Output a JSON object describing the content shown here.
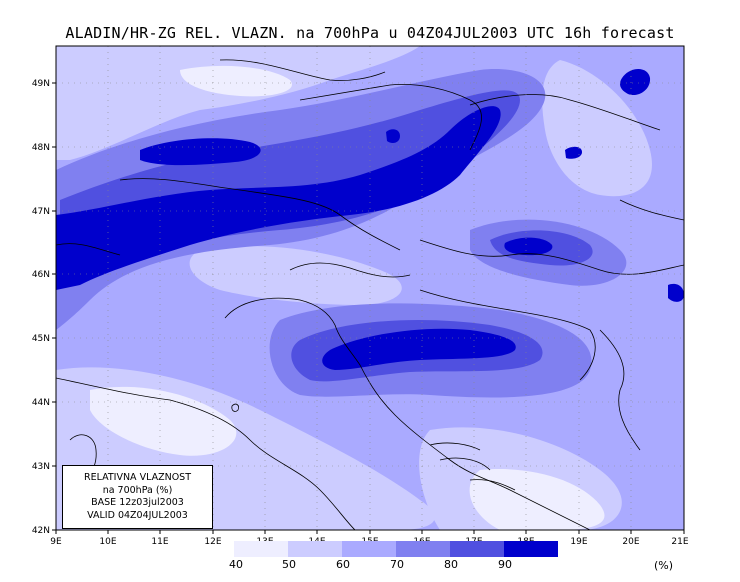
{
  "title": "ALADIN/HR-ZG REL. VLAZN. na 700hPa u 04Z04JUL2003 UTC 16h forecast",
  "axes": {
    "x_labels": [
      "9E",
      "10E",
      "11E",
      "12E",
      "13E",
      "14E",
      "15E",
      "16E",
      "17E",
      "18E",
      "19E",
      "20E",
      "21E"
    ],
    "y_labels": [
      "49N",
      "48N",
      "47N",
      "46N",
      "45N",
      "44N",
      "43N",
      "42N"
    ]
  },
  "info_box": {
    "line1": "RELATIVNA VLAZNOST",
    "line2": "na 700hPa (%)",
    "line3": "BASE 12z03jul2003",
    "line4": "VALID 04Z04JUL2003"
  },
  "legend": {
    "colors": [
      "#eeeeff",
      "#ccccff",
      "#aaaaff",
      "#8080f0",
      "#5050e0",
      "#0000cc"
    ],
    "labels": [
      "40",
      "50",
      "60",
      "70",
      "80",
      "90"
    ],
    "units": "(%)"
  },
  "field_colors": {
    "below_40": "#ffffff",
    "40_50": "#eeeeff",
    "50_60": "#ccccff",
    "60_70": "#aaaaff",
    "70_80": "#8080f0",
    "80_90": "#5050e0",
    "above_90": "#0000cc",
    "coastline": "#000000",
    "grid": "#999999"
  },
  "map": {
    "type": "shaded relative humidity contour map",
    "lon_range": [
      9,
      21
    ],
    "lat_range": [
      42,
      49.5
    ]
  }
}
